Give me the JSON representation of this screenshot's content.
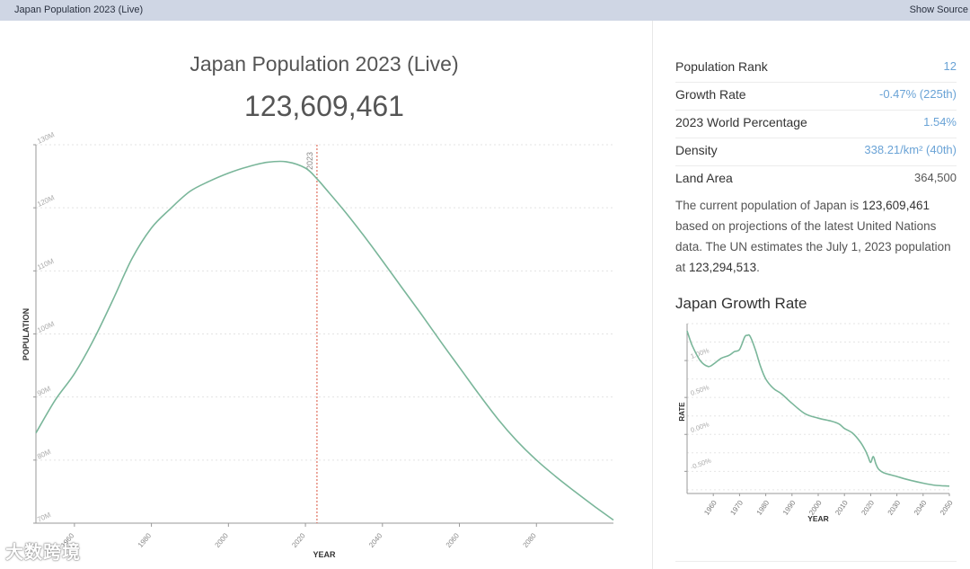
{
  "topbar": {
    "title": "Japan Population 2023 (Live)",
    "source_label": "Show Source"
  },
  "header": {
    "title": "Japan Population 2023 (Live)",
    "live_count": "123,609,461"
  },
  "stats": [
    {
      "label": "Population Rank",
      "value": "12"
    },
    {
      "label": "Growth Rate",
      "value": "-0.47% (225th)"
    },
    {
      "label": "2023 World Percentage",
      "value": "1.54%"
    },
    {
      "label": "Density",
      "value": "338.21/km² (40th)"
    },
    {
      "label": "Land Area",
      "value": "364,500"
    }
  ],
  "description": {
    "part1": "The current population of Japan is ",
    "current": "123,609,461",
    "part2": " based on projections of the latest United Nations data. The UN estimates the July 1, 2023 population at ",
    "estimate": "123,294,513",
    "part3": "."
  },
  "growth_title": "Japan Growth Rate",
  "watermark": "大数跨境",
  "colors": {
    "line": "#7ab69a",
    "marker": "#d9543f",
    "accent": "#6aa3d6",
    "topbar": "#cfd6e4"
  },
  "chart_data": [
    {
      "type": "line",
      "title": "Japan Population 2023 (Live)",
      "xlabel": "YEAR",
      "ylabel": "POPULATION",
      "xlim": [
        1950,
        2100
      ],
      "ylim": [
        70000000,
        130000000
      ],
      "x_ticks": [
        1960,
        1980,
        2000,
        2020,
        2040,
        2060,
        2080
      ],
      "y_ticks": [
        70000000,
        80000000,
        90000000,
        100000000,
        110000000,
        120000000,
        130000000
      ],
      "y_tick_labels": [
        "70M",
        "80M",
        "90M",
        "100M",
        "110M",
        "120M",
        "130M"
      ],
      "marker": {
        "x": 2023,
        "label": "2023"
      },
      "series": [
        {
          "name": "Population",
          "x": [
            1950,
            1955,
            1960,
            1965,
            1970,
            1975,
            1980,
            1985,
            1990,
            1995,
            2000,
            2005,
            2010,
            2015,
            2020,
            2023,
            2025,
            2030,
            2035,
            2040,
            2045,
            2050,
            2055,
            2060,
            2065,
            2070,
            2075,
            2080,
            2085,
            2090,
            2095,
            2100
          ],
          "y": [
            84300000,
            89500000,
            93700000,
            99100000,
            105400000,
            112000000,
            116800000,
            119900000,
            122600000,
            124200000,
            125500000,
            126500000,
            127200000,
            127300000,
            126300000,
            124600000,
            123200000,
            119600000,
            115700000,
            111600000,
            107400000,
            103200000,
            98900000,
            94700000,
            90500000,
            86500000,
            83000000,
            80000000,
            77400000,
            75000000,
            72700000,
            70500000
          ]
        }
      ]
    },
    {
      "type": "line",
      "title": "Japan Growth Rate",
      "xlabel": "YEAR",
      "ylabel": "RATE",
      "xlim": [
        1950,
        2050
      ],
      "ylim": [
        -0.8,
        1.5
      ],
      "x_ticks": [
        1960,
        1970,
        1980,
        1990,
        2000,
        2010,
        2020,
        2030,
        2040,
        2050
      ],
      "y_ticks": [
        1.0,
        0.5,
        0.0,
        -0.5
      ],
      "y_tick_labels": [
        "1.00%",
        "0.50%",
        "0.00%",
        "-0.50%"
      ],
      "series": [
        {
          "name": "Growth Rate",
          "x": [
            1950,
            1952,
            1955,
            1958,
            1960,
            1963,
            1966,
            1968,
            1970,
            1972,
            1973,
            1974,
            1976,
            1978,
            1980,
            1983,
            1986,
            1990,
            1995,
            2000,
            2005,
            2008,
            2010,
            2013,
            2016,
            2018,
            2019,
            2020,
            2021,
            2022,
            2023,
            2025,
            2030,
            2035,
            2040,
            2045,
            2050
          ],
          "y": [
            1.4,
            1.2,
            1.0,
            0.92,
            0.95,
            1.03,
            1.07,
            1.12,
            1.15,
            1.32,
            1.34,
            1.33,
            1.15,
            0.92,
            0.75,
            0.62,
            0.55,
            0.42,
            0.28,
            0.22,
            0.18,
            0.14,
            0.08,
            0.02,
            -0.1,
            -0.22,
            -0.3,
            -0.38,
            -0.3,
            -0.4,
            -0.47,
            -0.52,
            -0.57,
            -0.62,
            -0.66,
            -0.69,
            -0.7
          ]
        }
      ]
    }
  ]
}
